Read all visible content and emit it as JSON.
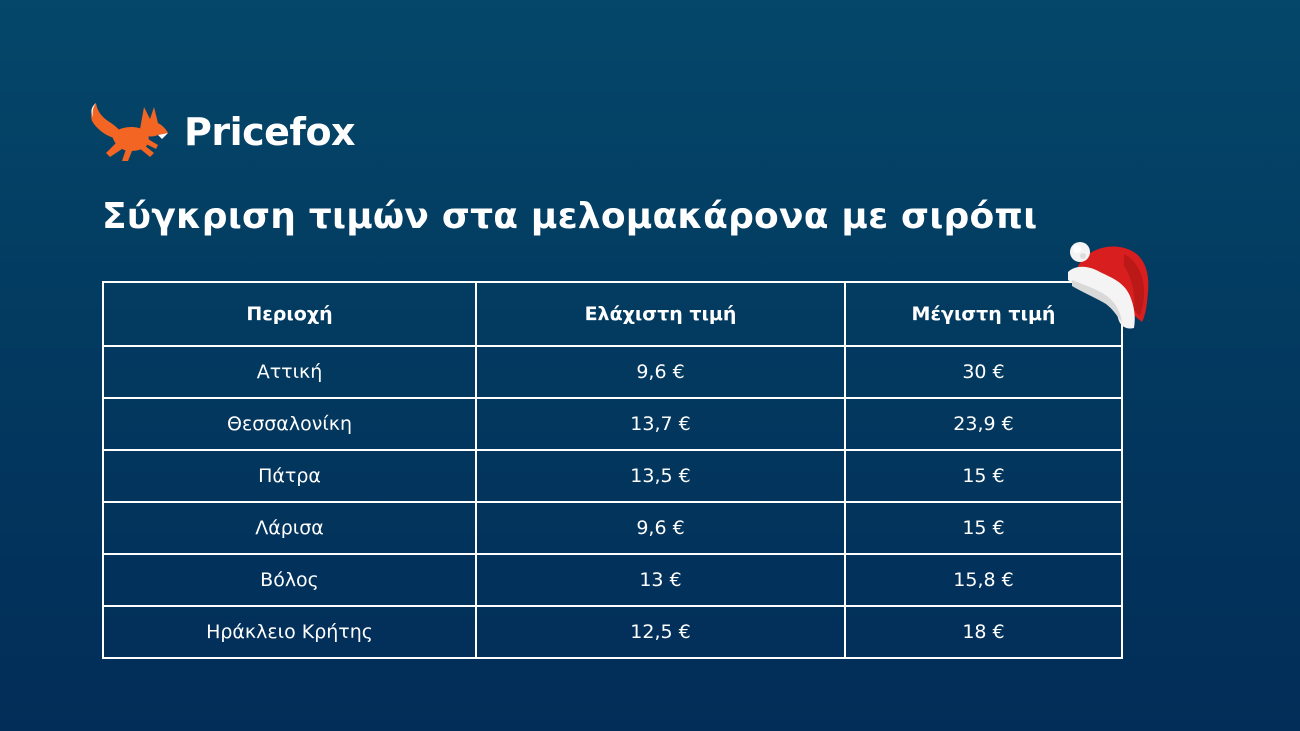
{
  "brand": {
    "name": "Pricefox",
    "logo_icon": "fox-icon",
    "logo_color": "#f26522"
  },
  "title": "Σύγκριση τιμών στα μελομακάρονα με σιρόπι",
  "decoration": {
    "icon": "santa-hat-icon"
  },
  "table": {
    "headers": [
      "Περιοχή",
      "Ελάχιστη τιμή",
      "Μέγιστη τιμή"
    ],
    "rows": [
      [
        "Αττική",
        "9,6 €",
        "30 €"
      ],
      [
        "Θεσσαλονίκη",
        "13,7 €",
        "23,9 €"
      ],
      [
        "Πάτρα",
        "13,5 €",
        "15 €"
      ],
      [
        "Λάρισα",
        "9,6 €",
        "15 €"
      ],
      [
        "Βόλος",
        "13 €",
        "15,8 €"
      ],
      [
        "Ηράκλειο Κρήτης",
        "12,5 €",
        "18 €"
      ]
    ]
  },
  "colors": {
    "background_top": "#04476a",
    "background_bottom": "#022d58",
    "text": "#ffffff",
    "hat_red": "#d81e1e"
  }
}
